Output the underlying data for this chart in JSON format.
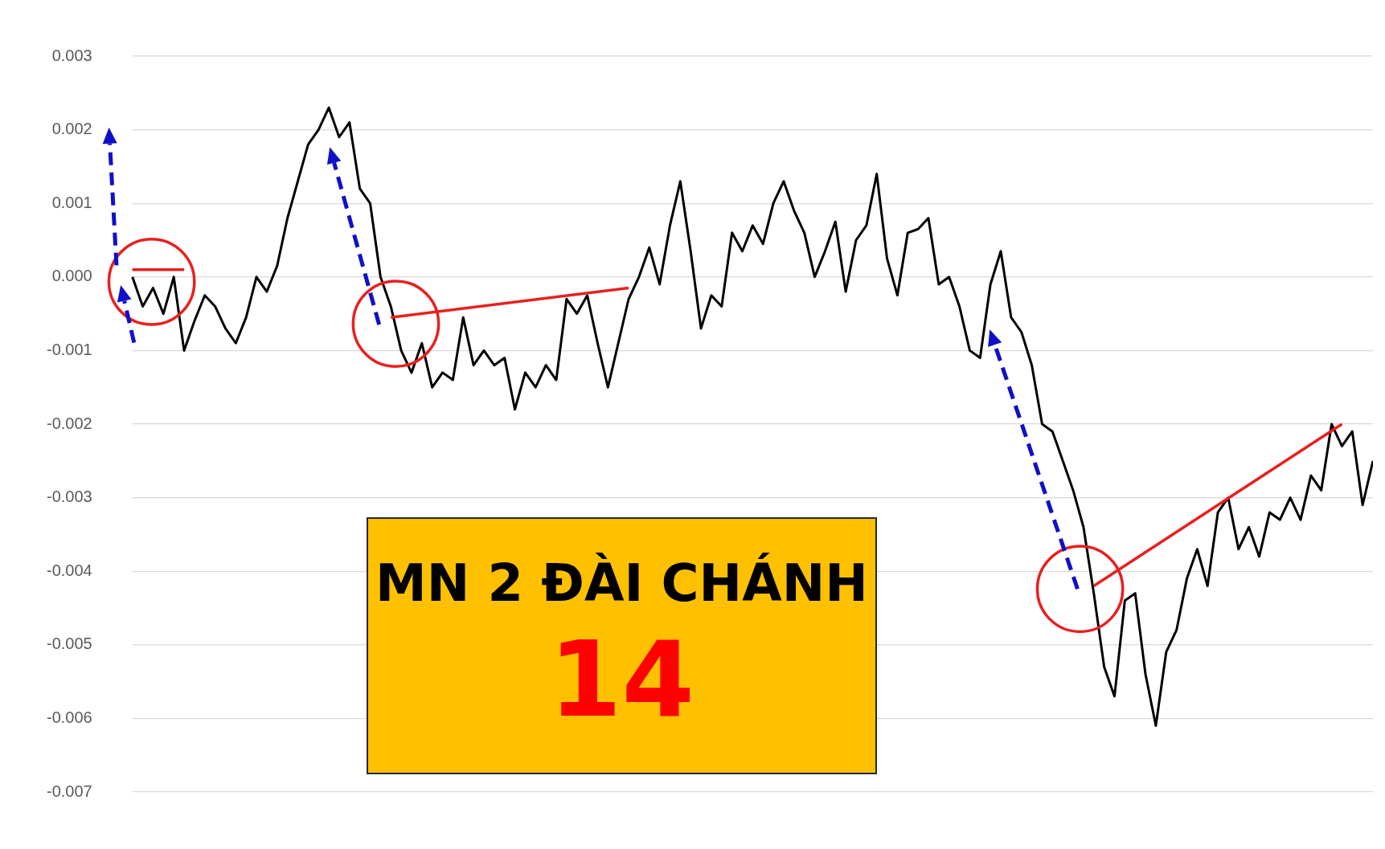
{
  "chart_data": {
    "type": "line",
    "categories": [
      null,
      null,
      null,
      null,
      null,
      null,
      null,
      null,
      null,
      null,
      null,
      null,
      null,
      null,
      null,
      null,
      null,
      null,
      null,
      null,
      null,
      null,
      null,
      null,
      null,
      null,
      null,
      null,
      null,
      null,
      null,
      null,
      null,
      null,
      null,
      null,
      null,
      null,
      null,
      null,
      null,
      null,
      null,
      null,
      null,
      null,
      null,
      null,
      null,
      null,
      null,
      null,
      null,
      null,
      null,
      null,
      null,
      null,
      null,
      null,
      null,
      null,
      null,
      null,
      null,
      null,
      null,
      null,
      null,
      null,
      null,
      null,
      null,
      null,
      null,
      null,
      null,
      null,
      null,
      null,
      null,
      null,
      null,
      null,
      null,
      null,
      null,
      null,
      null,
      null,
      null,
      null,
      null,
      null,
      null,
      null,
      null,
      null,
      null,
      null,
      null,
      null,
      null,
      null,
      null,
      null,
      null,
      null,
      null,
      null,
      null,
      null,
      null,
      null,
      null,
      null,
      null,
      null,
      null,
      null,
      null
    ],
    "series": [
      {
        "color": "#000000",
        "values": [
          0.0,
          -0.0004,
          -0.00015,
          -0.0005,
          0.0,
          -0.001,
          -0.0006,
          -0.00025,
          -0.0004,
          -0.0007,
          -0.0009,
          -0.00055,
          0.0,
          -0.0002,
          0.00015,
          0.0008,
          0.0013,
          0.0018,
          0.002,
          0.0023,
          0.0019,
          0.0021,
          0.0012,
          0.001,
          0.0,
          -0.0004,
          -0.001,
          -0.0013,
          -0.0009,
          -0.0015,
          -0.0013,
          -0.0014,
          -0.00055,
          -0.0012,
          -0.001,
          -0.0012,
          -0.0011,
          -0.0018,
          -0.0013,
          -0.0015,
          -0.0012,
          -0.0014,
          -0.0003,
          -0.0005,
          -0.00025,
          -0.0009,
          -0.0015,
          -0.0009,
          -0.0003,
          0.0,
          0.0004,
          -0.0001,
          0.0007,
          0.0013,
          0.00035,
          -0.0007,
          -0.00025,
          -0.0004,
          0.0006,
          0.00035,
          0.0007,
          0.00045,
          0.001,
          0.0013,
          0.0009,
          0.0006,
          0.0,
          0.00035,
          0.00075,
          -0.0002,
          0.0005,
          0.0007,
          0.0014,
          0.00025,
          -0.00025,
          0.0006,
          0.00065,
          0.0008,
          -0.0001,
          0.0,
          -0.0004,
          -0.001,
          -0.0011,
          -0.0001,
          0.00035,
          -0.00055,
          -0.00075,
          -0.0012,
          -0.002,
          -0.0021,
          -0.0025,
          -0.0029,
          -0.0034,
          -0.0043,
          -0.0053,
          -0.0057,
          -0.0044,
          -0.0043,
          -0.0054,
          -0.0061,
          -0.0051,
          -0.0048,
          -0.0041,
          -0.0037,
          -0.0042,
          -0.0032,
          -0.003,
          -0.0037,
          -0.0034,
          -0.0038,
          -0.0032,
          -0.0033,
          -0.003,
          -0.0033,
          -0.0027,
          -0.0029,
          -0.002,
          -0.0023,
          -0.0021,
          -0.0031,
          -0.0025
        ]
      },
      {
        "color": "#e8201f",
        "values": [
          0.0001,
          null,
          null,
          null,
          null,
          0.0001,
          null,
          null,
          null,
          null,
          null,
          null,
          null,
          null,
          null,
          null,
          null,
          null,
          null,
          null,
          null,
          null,
          null,
          null,
          null,
          null,
          null,
          null,
          null,
          null,
          null,
          null,
          null,
          null,
          null,
          null,
          null,
          null,
          null,
          null,
          null,
          null,
          null,
          null,
          null,
          null,
          null,
          null,
          null,
          null,
          null,
          null,
          null,
          null,
          null,
          null,
          null,
          null,
          null,
          null,
          null,
          null,
          null,
          null,
          null,
          null,
          null,
          null,
          null,
          null,
          null,
          null,
          null,
          null,
          null,
          null,
          null,
          null,
          null,
          null,
          null,
          null,
          null,
          null,
          null,
          null,
          null,
          null,
          null,
          null,
          null,
          null,
          null,
          null,
          null,
          null,
          null,
          null,
          null,
          null,
          null,
          null,
          null,
          null,
          null,
          null,
          null,
          null,
          null,
          null,
          null,
          null,
          null,
          null,
          null,
          null,
          null,
          null,
          null,
          null,
          null
        ]
      },
      {
        "color": "#e8201f",
        "values": [
          null,
          null,
          null,
          null,
          null,
          null,
          null,
          null,
          null,
          null,
          null,
          null,
          null,
          null,
          null,
          null,
          null,
          null,
          null,
          null,
          null,
          null,
          null,
          null,
          null,
          -0.00055,
          null,
          null,
          null,
          null,
          null,
          null,
          null,
          null,
          null,
          null,
          null,
          null,
          null,
          null,
          null,
          null,
          null,
          null,
          null,
          null,
          null,
          null,
          -0.00015,
          null,
          null,
          null,
          null,
          null,
          null,
          null,
          null,
          null,
          null,
          null,
          null,
          null,
          null,
          null,
          null,
          null,
          null,
          null,
          null,
          null,
          null,
          null,
          null,
          null,
          null,
          null,
          null,
          null,
          null,
          null,
          null,
          null,
          null,
          null,
          null,
          null,
          null,
          null,
          null,
          null,
          null,
          null,
          null,
          null,
          null,
          null,
          null,
          null,
          null,
          null,
          null,
          null,
          null,
          null,
          null,
          null,
          null,
          null,
          null,
          null,
          null,
          null,
          null,
          null,
          null,
          null,
          null,
          null,
          null,
          null,
          null
        ]
      },
      {
        "color": "#e8201f",
        "values": [
          null,
          null,
          null,
          null,
          null,
          null,
          null,
          null,
          null,
          null,
          null,
          null,
          null,
          null,
          null,
          null,
          null,
          null,
          null,
          null,
          null,
          null,
          null,
          null,
          null,
          null,
          null,
          null,
          null,
          null,
          null,
          null,
          null,
          null,
          null,
          null,
          null,
          null,
          null,
          null,
          null,
          null,
          null,
          null,
          null,
          null,
          null,
          null,
          null,
          null,
          null,
          null,
          null,
          null,
          null,
          null,
          null,
          null,
          null,
          null,
          null,
          null,
          null,
          null,
          null,
          null,
          null,
          null,
          null,
          null,
          null,
          null,
          null,
          null,
          null,
          null,
          null,
          null,
          null,
          null,
          null,
          null,
          null,
          null,
          null,
          null,
          null,
          null,
          null,
          null,
          null,
          null,
          null,
          -0.0042,
          null,
          null,
          null,
          null,
          null,
          null,
          null,
          null,
          null,
          null,
          null,
          null,
          null,
          null,
          null,
          null,
          null,
          null,
          null,
          null,
          null,
          null,
          null,
          -0.002,
          null,
          null,
          null
        ]
      }
    ],
    "ylim": [
      -0.007,
      0.003
    ],
    "yticks": [
      {
        "value": 0.003,
        "label": "0.003"
      },
      {
        "value": 0.002,
        "label": "0.002"
      },
      {
        "value": 0.001,
        "label": "0.001"
      },
      {
        "value": 0,
        "label": "0.000"
      },
      {
        "value": -0.001,
        "label": "-0.001"
      },
      {
        "value": -0.002,
        "label": "-0.002"
      },
      {
        "value": -0.003,
        "label": "-0.003"
      },
      {
        "value": -0.004,
        "label": "-0.004"
      },
      {
        "value": -0.005,
        "label": "-0.005"
      },
      {
        "value": -0.006,
        "label": "-0.006"
      },
      {
        "value": -0.007,
        "label": "-0.007"
      }
    ],
    "grid": "y",
    "legend": false,
    "marker": "none",
    "tick_labels": "y",
    "annotations": [
      "MN 2 ĐÀI CHÁNH",
      "14"
    ]
  }
}
